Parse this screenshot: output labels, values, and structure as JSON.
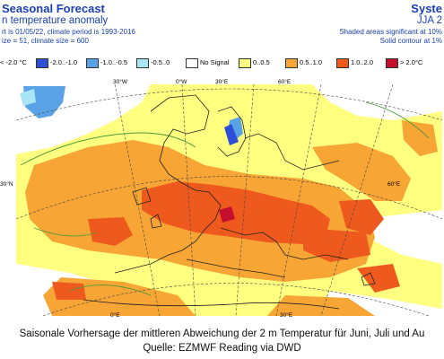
{
  "header": {
    "title": "Seasonal Forecast",
    "subtitle": "n temperature anomaly",
    "line3": "rt is 01/05/22, climate period is 1993-2016",
    "line4": "ize = 51, climate size = 600",
    "right_title": "Syste",
    "right_subtitle": "JJA 2",
    "right_line3": "Shaded areas significant at 10%",
    "right_line4": "Solid contour at 1%"
  },
  "legend": [
    {
      "label": "< -2.0 °C",
      "color": "#ffffff"
    },
    {
      "label": "-2.0..-1.0",
      "color": "#2f4fd8"
    },
    {
      "label": "-1.0..-0.5",
      "color": "#5aa2e6"
    },
    {
      "label": "-0.5..0",
      "color": "#a8e6f5"
    },
    {
      "label": "No Signal",
      "color": "#ffffff"
    },
    {
      "label": "0..0.5",
      "color": "#ffff80"
    },
    {
      "label": "0.5..1.0",
      "color": "#f7a534"
    },
    {
      "label": "1.0..2.0",
      "color": "#ee5a1e"
    },
    {
      "label": "> 2.0°C",
      "color": "#c4102e"
    }
  ],
  "map": {
    "lon_labels": [
      "30°W",
      "0°W",
      "30°E",
      "60°E",
      "0°E",
      "30°E"
    ],
    "lat_labels": [
      "30°N",
      "60°E"
    ]
  },
  "caption": {
    "line1": "Saisonale Vorhersage der mittleren Abweichung der 2 m Temperatur für Juni, Juli und Au",
    "line2": "Quelle: EZMWF Reading via DWD"
  }
}
